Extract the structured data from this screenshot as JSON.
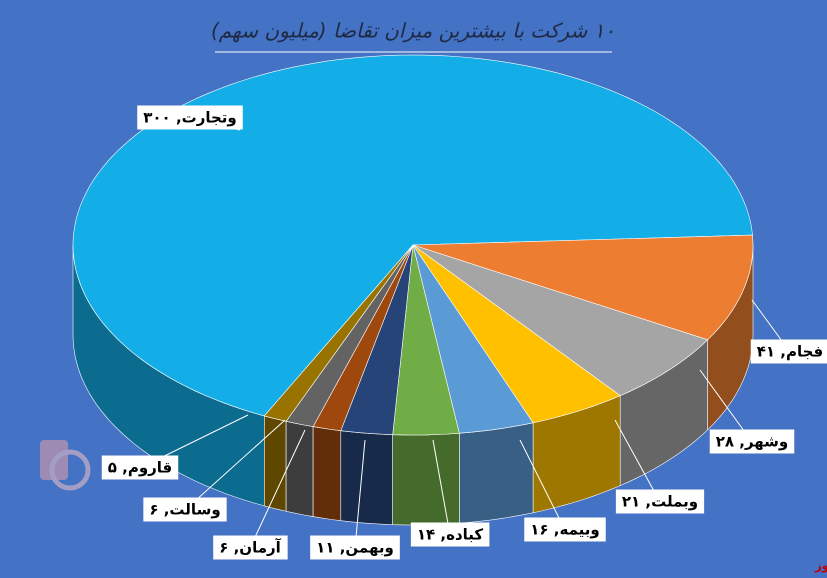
{
  "chart_data": {
    "type": "pie3d",
    "title": "۱۰ شرکت با بیشترین میزان تقاضا (میلیون سهم)",
    "values": [
      300,
      41,
      28,
      21,
      16,
      14,
      11,
      6,
      6,
      5
    ],
    "value_labels": [
      "وتجارت, ۳۰۰",
      "فجام, ۴۱",
      "وشهر, ۲۸",
      "وبملت, ۲۱",
      "وبیمه, ۱۶",
      "کباده, ۱۴",
      "وبهمن, ۱۱",
      "آرمان, ۶",
      "وسالت, ۶",
      "قاروم, ۵"
    ],
    "colors": [
      "#13aee8",
      "#ed7d31",
      "#a5a5a5",
      "#ffc000",
      "#5b9bd5",
      "#70ad47",
      "#264478",
      "#9e480e",
      "#636363",
      "#997300"
    ],
    "watermark": "بورس نیوز"
  }
}
